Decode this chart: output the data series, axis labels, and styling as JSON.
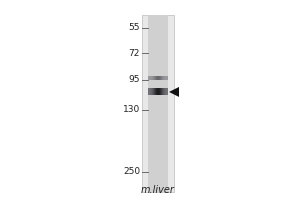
{
  "fig_width": 3.0,
  "fig_height": 2.0,
  "dpi": 100,
  "outer_bg_color": "#ffffff",
  "gel_bg_color": "#e8e8e8",
  "lane_bg_color": "#d0d0d0",
  "lane_label": "m.liver",
  "mw_markers": [
    250,
    130,
    95,
    72,
    55
  ],
  "band1_mw": 108,
  "band2_mw": 93,
  "arrow_color": "#111111",
  "marker_fontsize": 6.5,
  "lane_label_fontsize": 7.0,
  "ylim_low": 48,
  "ylim_high": 310
}
